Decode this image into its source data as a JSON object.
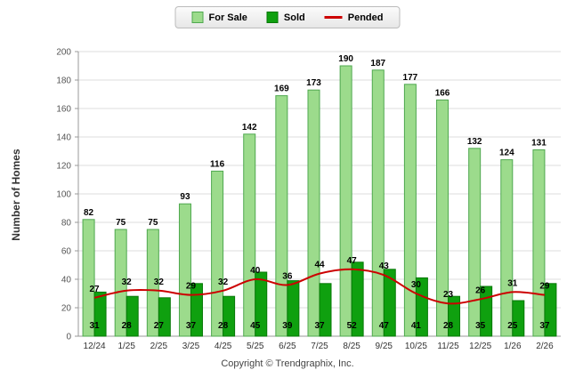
{
  "legend": {
    "items": [
      {
        "label": "For Sale",
        "color": "#9CDB8C",
        "border": "#4FA84F",
        "type": "box"
      },
      {
        "label": "Sold",
        "color": "#0FA00F",
        "border": "#077807",
        "type": "box"
      },
      {
        "label": "Pended",
        "color": "#CC0000",
        "type": "line"
      }
    ]
  },
  "chart_data": {
    "type": "bar",
    "categories": [
      "12/24",
      "1/25",
      "2/25",
      "3/25",
      "4/25",
      "5/25",
      "6/25",
      "7/25",
      "8/25",
      "9/25",
      "10/25",
      "11/25",
      "12/25",
      "1/26",
      "2/26"
    ],
    "series": [
      {
        "name": "For Sale",
        "type": "bar",
        "color": "#9CDB8C",
        "border": "#4FA84F",
        "values": [
          82,
          75,
          75,
          93,
          116,
          142,
          169,
          173,
          190,
          187,
          177,
          166,
          132,
          124,
          131
        ]
      },
      {
        "name": "Sold",
        "type": "bar",
        "color": "#0FA00F",
        "border": "#077807",
        "values": [
          31,
          28,
          27,
          37,
          28,
          45,
          39,
          37,
          52,
          47,
          41,
          28,
          35,
          25,
          37
        ]
      },
      {
        "name": "Pended",
        "type": "line",
        "color": "#CC0000",
        "values": [
          27,
          32,
          32,
          29,
          32,
          40,
          36,
          44,
          47,
          43,
          30,
          23,
          26,
          31,
          29
        ]
      }
    ],
    "title": "",
    "xlabel": "",
    "ylabel": "Number of Homes",
    "ylim": [
      0,
      200
    ],
    "ytick_step": 20,
    "grid": true,
    "legend_position": "top"
  },
  "footer": {
    "copyright": "Copyright © Trendgraphix, Inc."
  }
}
